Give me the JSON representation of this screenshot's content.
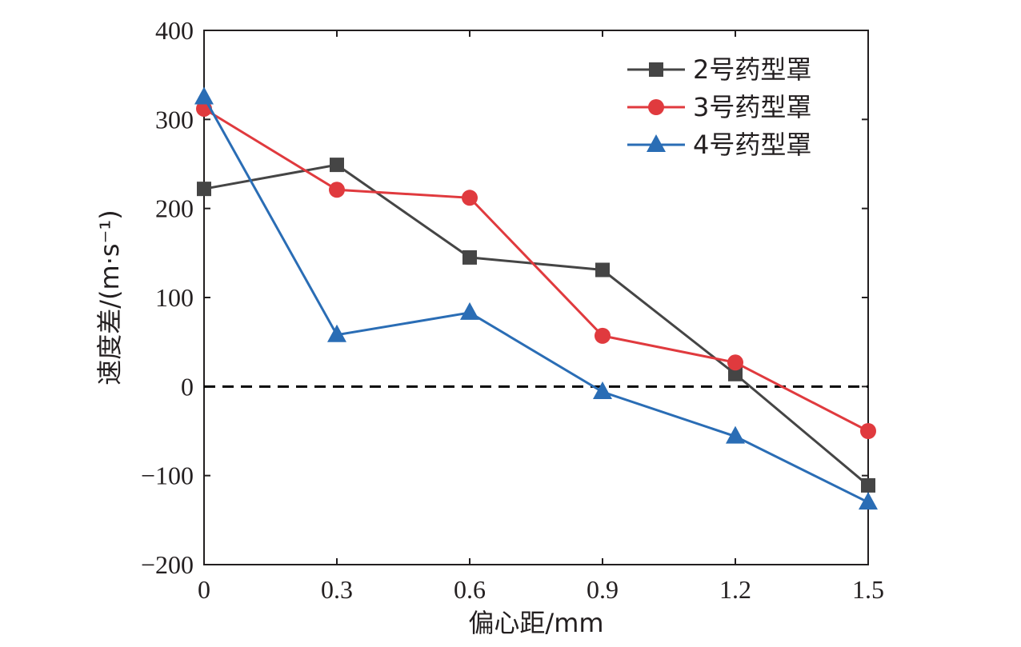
{
  "chart_data": {
    "type": "line",
    "x": [
      0,
      0.3,
      0.6,
      0.9,
      1.2,
      1.5
    ],
    "xticks": [
      "0",
      "0.3",
      "0.6",
      "0.9",
      "1.2",
      "1.5"
    ],
    "yticks": [
      "400",
      "300",
      "200",
      "100",
      "0",
      "−100",
      "−200"
    ],
    "xlim": [
      0,
      1.5
    ],
    "ylim": [
      -200,
      400
    ],
    "xlabel": "偏心距/mm",
    "ylabel": "速度差/(m·s⁻¹)",
    "reference_line": {
      "y": 0,
      "style": "dashed",
      "color": "#000000"
    },
    "legend_position": "top-right",
    "series": [
      {
        "name": "2号药型罩",
        "marker": "square",
        "color": "#454545",
        "values": [
          222,
          249,
          145,
          131,
          14,
          -111
        ]
      },
      {
        "name": "3号药型罩",
        "marker": "circle",
        "color": "#e03a3e",
        "values": [
          312,
          221,
          212,
          57,
          27,
          -50
        ]
      },
      {
        "name": "4号药型罩",
        "marker": "triangle",
        "color": "#2a6db5",
        "values": [
          325,
          58,
          83,
          -6,
          -56,
          -130
        ]
      }
    ]
  }
}
